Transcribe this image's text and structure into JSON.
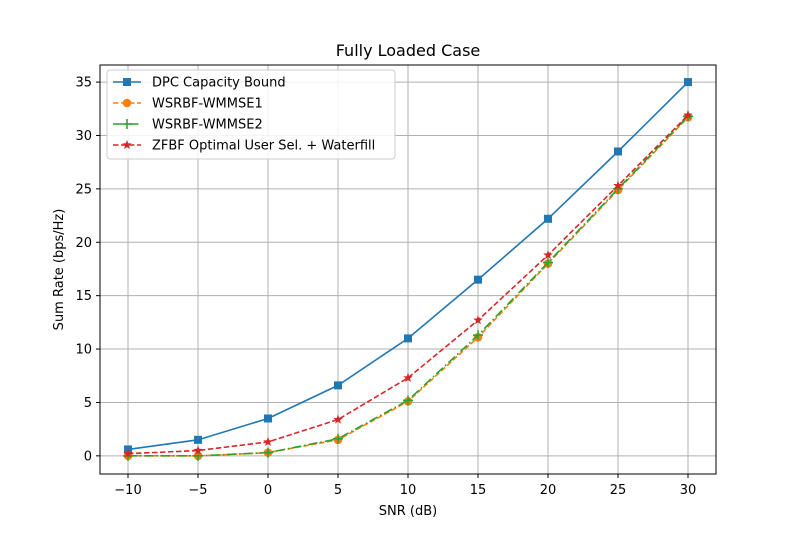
{
  "chart_data": {
    "type": "line",
    "title": "Fully Loaded Case",
    "xlabel": "SNR (dB)",
    "ylabel": "Sum Rate (bps/Hz)",
    "x": [
      -10,
      -5,
      0,
      5,
      10,
      15,
      20,
      25,
      30
    ],
    "xlim": [
      -12,
      32
    ],
    "ylim": [
      -1.7,
      36.6
    ],
    "xticks": [
      -10,
      -5,
      0,
      5,
      10,
      15,
      20,
      25,
      30
    ],
    "xtick_labels": [
      "−10",
      "−5",
      "0",
      "5",
      "10",
      "15",
      "20",
      "25",
      "30"
    ],
    "yticks": [
      0,
      5,
      10,
      15,
      20,
      25,
      30,
      35
    ],
    "ytick_labels": [
      "0",
      "5",
      "10",
      "15",
      "20",
      "25",
      "30",
      "35"
    ],
    "grid": true,
    "legend_position": "top-left",
    "series": [
      {
        "name": "DPC Capacity Bound",
        "color": "#1f77b4",
        "marker": "square",
        "dash": "solid",
        "values": [
          0.6,
          1.5,
          3.5,
          6.6,
          11.0,
          16.5,
          22.2,
          28.5,
          35.0
        ]
      },
      {
        "name": "WSRBF-WMMSE1",
        "color": "#ff7f0e",
        "marker": "circle",
        "dash": "dashed",
        "values": [
          0.0,
          0.0,
          0.3,
          1.5,
          5.1,
          11.1,
          18.0,
          24.9,
          31.7
        ]
      },
      {
        "name": "WSRBF-WMMSE2",
        "color": "#2ca02c",
        "marker": "plus",
        "dash": "dashdot",
        "values": [
          0.0,
          0.0,
          0.3,
          1.6,
          5.2,
          11.3,
          18.1,
          25.0,
          31.8
        ]
      },
      {
        "name": "ZFBF Optimal User Sel. + Waterfill",
        "color": "#d62728",
        "marker": "star",
        "dash": "dashed",
        "values": [
          0.2,
          0.5,
          1.3,
          3.4,
          7.3,
          12.7,
          18.8,
          25.3,
          31.9
        ]
      }
    ]
  }
}
